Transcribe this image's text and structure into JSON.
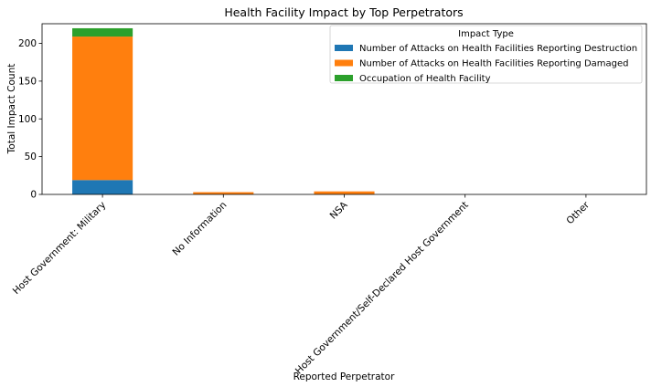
{
  "chart_data": {
    "type": "bar",
    "stacked": true,
    "title": "Health Facility Impact by Top Perpetrators",
    "xlabel": "Reported Perpetrator",
    "ylabel": "Total Impact Count",
    "ylim": [
      0,
      226
    ],
    "yticks": [
      0,
      50,
      100,
      150,
      200
    ],
    "categories": [
      "Host Government: Military",
      "No Information",
      "NSA",
      "Host Government/Self-Declared Host Government",
      "Other"
    ],
    "series": [
      {
        "name": "Number of Attacks on Health Facilities Reporting Destruction",
        "color": "#1f77b4",
        "values": [
          19,
          0,
          0,
          0,
          0
        ]
      },
      {
        "name": "Number of Attacks on Health Facilities Reporting Damaged",
        "color": "#ff7f0e",
        "values": [
          190,
          3,
          4,
          0,
          0
        ]
      },
      {
        "name": "Occupation of Health Facility",
        "color": "#2ca02c",
        "values": [
          11,
          0,
          0,
          0,
          0
        ]
      }
    ],
    "legend": {
      "title": "Impact Type",
      "position": "top-right"
    },
    "grid": false
  }
}
